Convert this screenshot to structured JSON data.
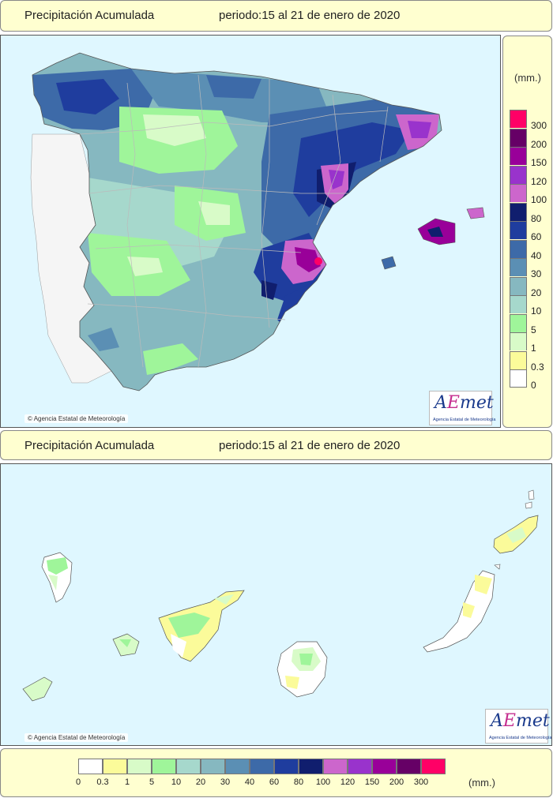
{
  "top_header": {
    "title": "Precipitación Acumulada",
    "period": "periodo:15 al 21 de enero de 2020"
  },
  "bottom_header": {
    "title": "Precipitación Acumulada",
    "period": "periodo:15 al 21 de enero de 2020"
  },
  "credit_text": "Agencia Estatal de Meteorología",
  "logo": {
    "brand_a": "A",
    "brand_e": "E",
    "brand_rest": "met",
    "subtitle": "Agencia Estatal de Meteorología"
  },
  "legend": {
    "unit": "(mm.)",
    "unit_bottom": "(mm.)",
    "levels": [
      {
        "label": "0",
        "color": "#ffffff"
      },
      {
        "label": "0.3",
        "color": "#fbfb9a"
      },
      {
        "label": "1",
        "color": "#d8fbc8"
      },
      {
        "label": "5",
        "color": "#9ff59a"
      },
      {
        "label": "10",
        "color": "#a6d8cc"
      },
      {
        "label": "20",
        "color": "#86b8c0"
      },
      {
        "label": "30",
        "color": "#5b8fb4"
      },
      {
        "label": "40",
        "color": "#3d6aa8"
      },
      {
        "label": "60",
        "color": "#1f3d9e"
      },
      {
        "label": "80",
        "color": "#101e6e"
      },
      {
        "label": "100",
        "color": "#cc66cc"
      },
      {
        "label": "120",
        "color": "#9933cc"
      },
      {
        "label": "150",
        "color": "#990099"
      },
      {
        "label": "200",
        "color": "#660066"
      },
      {
        "label": "300",
        "color": "#ff0066"
      }
    ]
  }
}
